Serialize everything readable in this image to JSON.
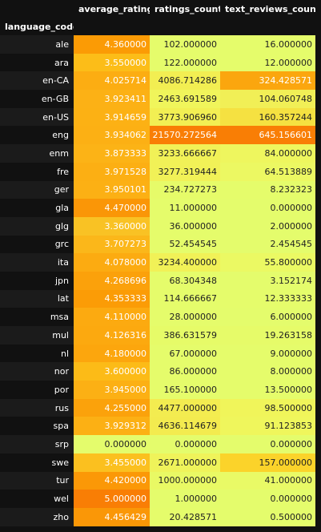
{
  "header": {
    "columns": [
      "average_rating",
      "ratings_count",
      "text_reviews_count"
    ],
    "index_label": "language_code"
  },
  "rows": [
    {
      "code": "ale",
      "avg": "4.360000",
      "ratings": "102.000000",
      "reviews": "16.000000",
      "colors": [
        "#fb9b05",
        "#e5fc6b",
        "#e5fc6b"
      ]
    },
    {
      "code": "ara",
      "avg": "3.550000",
      "ratings": "122.000000",
      "reviews": "12.000000",
      "colors": [
        "#fcbd18",
        "#e5fc6b",
        "#e5fc6b"
      ]
    },
    {
      "code": "en-CA",
      "avg": "4.025714",
      "ratings": "4086.714286",
      "reviews": "324.428571",
      "colors": [
        "#fcad12",
        "#f2ee52",
        "#fba60e"
      ]
    },
    {
      "code": "en-GB",
      "avg": "3.923411",
      "ratings": "2463.691589",
      "reviews": "104.060748",
      "colors": [
        "#fcb115",
        "#f0f55b",
        "#f1ef56"
      ]
    },
    {
      "code": "en-US",
      "avg": "3.914659",
      "ratings": "3773.906960",
      "reviews": "160.357244",
      "colors": [
        "#fcb114",
        "#f2ef53",
        "#f5e141"
      ]
    },
    {
      "code": "eng",
      "avg": "3.934062",
      "ratings": "21570.272564",
      "reviews": "645.156601",
      "colors": [
        "#fcb014",
        "#f97e05",
        "#f97e05"
      ]
    },
    {
      "code": "enm",
      "avg": "3.873333",
      "ratings": "3233.666667",
      "reviews": "84.000000",
      "colors": [
        "#fcb316",
        "#f1f157",
        "#eef65e"
      ]
    },
    {
      "code": "fre",
      "avg": "3.971528",
      "ratings": "3277.319444",
      "reviews": "64.513889",
      "colors": [
        "#fcaf13",
        "#f1f157",
        "#ecf862"
      ]
    },
    {
      "code": "ger",
      "avg": "3.950101",
      "ratings": "234.727273",
      "reviews": "8.232323",
      "colors": [
        "#fcb014",
        "#e6fb69",
        "#e5fc6b"
      ]
    },
    {
      "code": "gla",
      "avg": "4.470000",
      "ratings": "11.000000",
      "reviews": "0.000000",
      "colors": [
        "#fa9607",
        "#e5fc6b",
        "#e4fc6c"
      ]
    },
    {
      "code": "glg",
      "avg": "3.360000",
      "ratings": "36.000000",
      "reviews": "2.000000",
      "colors": [
        "#f9c224",
        "#e5fc6b",
        "#e4fc6c"
      ]
    },
    {
      "code": "grc",
      "avg": "3.707273",
      "ratings": "52.454545",
      "reviews": "2.454545",
      "colors": [
        "#fbb71a",
        "#e5fc6b",
        "#e4fc6c"
      ]
    },
    {
      "code": "ita",
      "avg": "4.078000",
      "ratings": "3234.400000",
      "reviews": "55.800000",
      "colors": [
        "#fcab11",
        "#f1f157",
        "#ebf963"
      ]
    },
    {
      "code": "jpn",
      "avg": "4.268696",
      "ratings": "68.304348",
      "reviews": "3.152174",
      "colors": [
        "#fba10b",
        "#e5fc6b",
        "#e4fc6c"
      ]
    },
    {
      "code": "lat",
      "avg": "4.353333",
      "ratings": "114.666667",
      "reviews": "12.333333",
      "colors": [
        "#fb9c06",
        "#e5fc6b",
        "#e5fc6b"
      ]
    },
    {
      "code": "msa",
      "avg": "4.110000",
      "ratings": "28.000000",
      "reviews": "6.000000",
      "colors": [
        "#fcaa10",
        "#e5fc6b",
        "#e4fc6c"
      ]
    },
    {
      "code": "mul",
      "avg": "4.126316",
      "ratings": "386.631579",
      "reviews": "19.263158",
      "colors": [
        "#fca90f",
        "#e6fb68",
        "#e6fb69"
      ]
    },
    {
      "code": "nl",
      "avg": "4.180000",
      "ratings": "67.000000",
      "reviews": "9.000000",
      "colors": [
        "#fca60d",
        "#e5fc6b",
        "#e5fc6b"
      ]
    },
    {
      "code": "nor",
      "avg": "3.600000",
      "ratings": "86.000000",
      "reviews": "8.000000",
      "colors": [
        "#fcbb17",
        "#e5fc6b",
        "#e5fc6b"
      ]
    },
    {
      "code": "por",
      "avg": "3.945000",
      "ratings": "165.100000",
      "reviews": "13.500000",
      "colors": [
        "#fcb014",
        "#e5fc6b",
        "#e5fc6b"
      ]
    },
    {
      "code": "rus",
      "avg": "4.255000",
      "ratings": "4477.000000",
      "reviews": "98.500000",
      "colors": [
        "#fba20b",
        "#f3ec50",
        "#f0f55a"
      ]
    },
    {
      "code": "spa",
      "avg": "3.929312",
      "ratings": "4636.114679",
      "reviews": "91.123853",
      "colors": [
        "#fcb014",
        "#f3eb4f",
        "#eff65c"
      ]
    },
    {
      "code": "srp",
      "avg": "0.000000",
      "ratings": "0.000000",
      "reviews": "0.000000",
      "colors": [
        "#e4fc6c",
        "#e4fc6c",
        "#e4fc6c"
      ]
    },
    {
      "code": "swe",
      "avg": "3.455000",
      "ratings": "2671.000000",
      "reviews": "157.000000",
      "colors": [
        "#fbc01f",
        "#eff35a",
        "#fbd32a"
      ]
    },
    {
      "code": "tur",
      "avg": "4.420000",
      "ratings": "1000.000000",
      "reviews": "41.000000",
      "colors": [
        "#fb9807",
        "#e9f964",
        "#e9fa66"
      ]
    },
    {
      "code": "wel",
      "avg": "5.000000",
      "ratings": "1.000000",
      "reviews": "0.000000",
      "colors": [
        "#f97e05",
        "#e4fc6c",
        "#e4fc6c"
      ]
    },
    {
      "code": "zho",
      "avg": "4.456429",
      "ratings": "20.428571",
      "reviews": "0.500000",
      "colors": [
        "#fa9707",
        "#e5fc6b",
        "#e4fc6c"
      ]
    }
  ]
}
